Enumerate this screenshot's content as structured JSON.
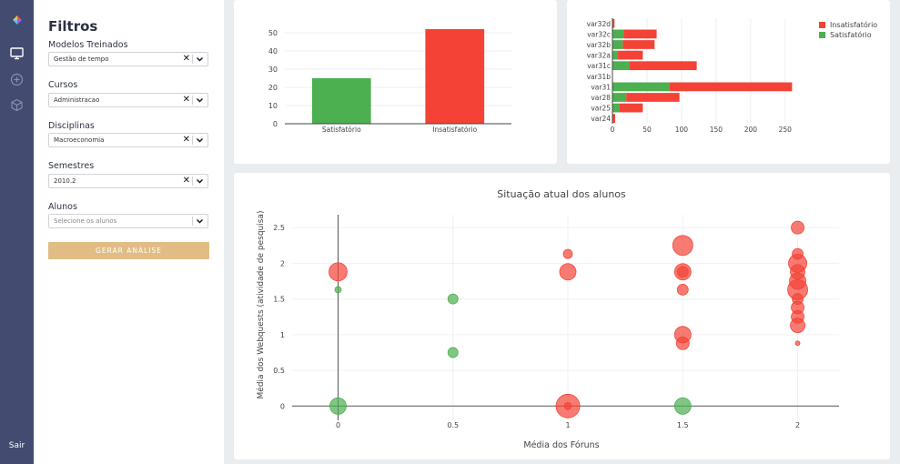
{
  "rail": {
    "icons": [
      "app-logo",
      "monitor-icon",
      "add-circle-icon",
      "cube-icon"
    ],
    "exit_label": "Sair"
  },
  "filters": {
    "title": "Filtros",
    "models": {
      "label": "Modelos Treinados",
      "value": "Gestão de tempo"
    },
    "courses": {
      "label": "Cursos",
      "value": "Administracao"
    },
    "subjects": {
      "label": "Disciplinas",
      "value": "Macroeconomia"
    },
    "semesters": {
      "label": "Semestres",
      "value": "2010.2"
    },
    "students": {
      "label": "Alunos",
      "placeholder": "Selecione os alunos"
    },
    "generate_label": "GERAR ANÁLISE",
    "clear_glyph": "✕"
  },
  "colors": {
    "satisfactory": "#4caf50",
    "unsatisfactory": "#f44336",
    "accent_button": "#e1bd85",
    "rail": "#434b70"
  },
  "chart_data": [
    {
      "type": "bar",
      "categories": [
        "Satisfatório",
        "Insatisfatório"
      ],
      "values": [
        25,
        52
      ],
      "ylim": [
        0,
        55
      ],
      "yticks": [
        0,
        10,
        20,
        30,
        40,
        50
      ],
      "colors": [
        "#4caf50",
        "#f44336"
      ],
      "grid": true
    },
    {
      "type": "bar",
      "orientation": "horizontal",
      "stacked": true,
      "categories": [
        "var24",
        "var25",
        "var28",
        "var31",
        "var31b",
        "var31c",
        "var32a",
        "var32b",
        "var32c",
        "var32d"
      ],
      "series": [
        {
          "name": "Satisfatório",
          "color": "#4caf50",
          "values": [
            0,
            10,
            20,
            82,
            0,
            25,
            8,
            15,
            16,
            0
          ]
        },
        {
          "name": "Insatisfatório",
          "color": "#f44336",
          "values": [
            4,
            34,
            77,
            178,
            0,
            97,
            36,
            46,
            48,
            3
          ]
        }
      ],
      "xlim": [
        0,
        270
      ],
      "xticks": [
        0,
        50,
        100,
        150,
        200,
        250
      ],
      "legend": {
        "position": "top-right",
        "order": [
          "Insatisfatório",
          "Satisfatório"
        ]
      },
      "grid": true
    },
    {
      "type": "scatter",
      "title": "Situação atual dos alunos",
      "xlabel": "Média dos Fóruns",
      "ylabel": "Média dos Webquests (atividade de pesquisa)",
      "xlim": [
        -0.2,
        2.18
      ],
      "ylim": [
        -0.2,
        2.68
      ],
      "xticks": [
        0,
        0.5,
        1,
        1.5,
        2
      ],
      "xtick_labels": [
        "0",
        "0.5",
        "1",
        "1.5",
        "2"
      ],
      "yticks": [
        0,
        0.5,
        1,
        1.5,
        2,
        2.5
      ],
      "ytick_labels": [
        "0",
        "0.5",
        "1",
        "1.5",
        "2",
        "2.5"
      ],
      "grid": true,
      "points": [
        {
          "x": 0,
          "y": 1.88,
          "r": 10,
          "c": "red"
        },
        {
          "x": 0,
          "y": 1.63,
          "r": 3.5,
          "c": "green"
        },
        {
          "x": 0,
          "y": 0,
          "r": 9,
          "c": "green"
        },
        {
          "x": 0.5,
          "y": 1.5,
          "r": 5.5,
          "c": "green"
        },
        {
          "x": 0.5,
          "y": 0.75,
          "r": 5.5,
          "c": "green"
        },
        {
          "x": 1,
          "y": 2.13,
          "r": 5,
          "c": "red"
        },
        {
          "x": 1,
          "y": 1.88,
          "r": 9,
          "c": "red"
        },
        {
          "x": 1,
          "y": 0,
          "r": 13,
          "c": "red"
        },
        {
          "x": 1,
          "y": 0,
          "r": 4,
          "c": "red"
        },
        {
          "x": 1.5,
          "y": 2.25,
          "r": 11,
          "c": "red"
        },
        {
          "x": 1.5,
          "y": 1.88,
          "r": 9,
          "c": "red"
        },
        {
          "x": 1.5,
          "y": 1.88,
          "r": 6,
          "c": "red"
        },
        {
          "x": 1.5,
          "y": 1.63,
          "r": 6,
          "c": "red"
        },
        {
          "x": 1.5,
          "y": 1,
          "r": 9,
          "c": "red"
        },
        {
          "x": 1.5,
          "y": 0.88,
          "r": 7,
          "c": "red"
        },
        {
          "x": 1.5,
          "y": 0,
          "r": 9,
          "c": "green"
        },
        {
          "x": 2,
          "y": 2.5,
          "r": 7,
          "c": "red"
        },
        {
          "x": 2,
          "y": 2.13,
          "r": 6,
          "c": "red"
        },
        {
          "x": 2,
          "y": 2,
          "r": 10,
          "c": "red"
        },
        {
          "x": 2,
          "y": 1.88,
          "r": 8,
          "c": "red"
        },
        {
          "x": 2,
          "y": 1.75,
          "r": 9,
          "c": "red"
        },
        {
          "x": 2,
          "y": 1.63,
          "r": 11,
          "c": "red"
        },
        {
          "x": 2,
          "y": 1.5,
          "r": 6,
          "c": "red"
        },
        {
          "x": 2,
          "y": 1.38,
          "r": 7,
          "c": "red"
        },
        {
          "x": 2,
          "y": 1.25,
          "r": 7,
          "c": "red"
        },
        {
          "x": 2,
          "y": 1.13,
          "r": 8,
          "c": "red"
        },
        {
          "x": 2,
          "y": 0.88,
          "r": 2.5,
          "c": "red"
        }
      ]
    }
  ]
}
